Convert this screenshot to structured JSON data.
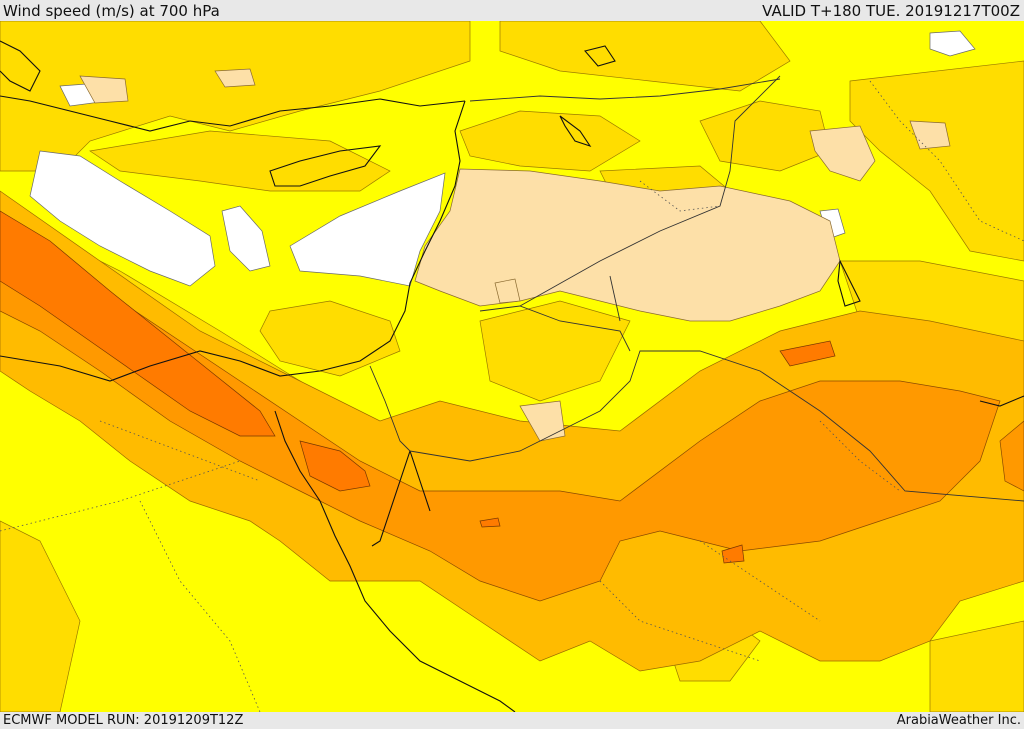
{
  "header": {
    "title": "Wind speed (m/s) at 700 hPa",
    "valid": "VALID T+180 TUE. 20191217T00Z"
  },
  "footer": {
    "model_run": "ECMWF MODEL RUN: 20191209T12Z",
    "credit": "ArabiaWeather Inc."
  },
  "palette": {
    "calm": "#ffffff",
    "light": "#ffff00",
    "moderate": "#ffdd00",
    "fresh": "#ffbb00",
    "strong": "#ff9900",
    "very_strong": "#ff7b00",
    "tan": "#fde0a8",
    "coast": "#111111",
    "border": "#333333"
  }
}
